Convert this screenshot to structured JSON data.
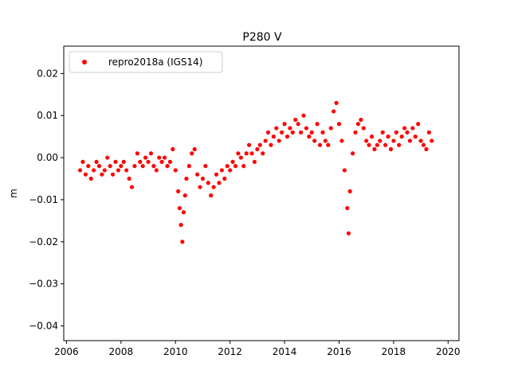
{
  "chart_data": {
    "type": "scatter",
    "title": "P280 V",
    "xlabel": "",
    "ylabel": "m",
    "xlim": [
      2005.9,
      2020.4
    ],
    "ylim": [
      -0.0435,
      0.0265
    ],
    "xticks": [
      2006,
      2008,
      2010,
      2012,
      2014,
      2016,
      2018,
      2020
    ],
    "xtick_labels": [
      "2006",
      "2008",
      "2010",
      "2012",
      "2014",
      "2016",
      "2018",
      "2020"
    ],
    "yticks": [
      -0.04,
      -0.03,
      -0.02,
      -0.01,
      0.0,
      0.01,
      0.02
    ],
    "ytick_labels": [
      "−0.04",
      "−0.03",
      "−0.02",
      "−0.01",
      "0.00",
      "0.01",
      "0.02"
    ],
    "grid": false,
    "legend_position": "top-left",
    "series": [
      {
        "name": "repro2018a (IGS14)",
        "color": "#ff0000",
        "marker": "dot",
        "x": [
          2006.5,
          2006.6,
          2006.7,
          2006.8,
          2006.9,
          2007.0,
          2007.1,
          2007.2,
          2007.3,
          2007.4,
          2007.5,
          2007.6,
          2007.7,
          2007.8,
          2007.9,
          2008.0,
          2008.1,
          2008.2,
          2008.3,
          2008.4,
          2008.5,
          2008.6,
          2008.7,
          2008.8,
          2008.9,
          2009.0,
          2009.1,
          2009.2,
          2009.3,
          2009.4,
          2009.5,
          2009.6,
          2009.7,
          2009.8,
          2009.9,
          2010.0,
          2010.1,
          2010.15,
          2010.2,
          2010.25,
          2010.3,
          2010.35,
          2010.4,
          2010.5,
          2010.6,
          2010.7,
          2010.8,
          2010.9,
          2011.0,
          2011.1,
          2011.2,
          2011.3,
          2011.4,
          2011.5,
          2011.6,
          2011.7,
          2011.8,
          2011.9,
          2012.0,
          2012.1,
          2012.2,
          2012.3,
          2012.4,
          2012.5,
          2012.6,
          2012.7,
          2012.8,
          2012.9,
          2013.0,
          2013.1,
          2013.2,
          2013.3,
          2013.4,
          2013.5,
          2013.6,
          2013.7,
          2013.8,
          2013.9,
          2014.0,
          2014.1,
          2014.2,
          2014.3,
          2014.4,
          2014.5,
          2014.6,
          2014.7,
          2014.8,
          2014.9,
          2015.0,
          2015.1,
          2015.2,
          2015.3,
          2015.4,
          2015.5,
          2015.6,
          2015.7,
          2015.8,
          2015.9,
          2016.0,
          2016.1,
          2016.2,
          2016.3,
          2016.35,
          2016.4,
          2016.5,
          2016.6,
          2016.7,
          2016.8,
          2016.9,
          2017.0,
          2017.1,
          2017.2,
          2017.3,
          2017.4,
          2017.5,
          2017.6,
          2017.7,
          2017.8,
          2017.9,
          2018.0,
          2018.1,
          2018.2,
          2018.3,
          2018.4,
          2018.5,
          2018.6,
          2018.7,
          2018.8,
          2018.9,
          2019.0,
          2019.1,
          2019.2,
          2019.3,
          2019.4
        ],
        "y": [
          -0.003,
          -0.001,
          -0.004,
          -0.002,
          -0.005,
          -0.003,
          -0.001,
          -0.002,
          -0.004,
          -0.003,
          0.0,
          -0.002,
          -0.004,
          -0.001,
          -0.003,
          -0.002,
          -0.001,
          -0.003,
          -0.005,
          -0.007,
          -0.002,
          0.001,
          -0.001,
          -0.002,
          0.0,
          -0.001,
          0.001,
          -0.002,
          -0.003,
          0.0,
          -0.001,
          0.0,
          -0.002,
          -0.001,
          0.002,
          -0.003,
          -0.008,
          -0.012,
          -0.016,
          -0.02,
          -0.013,
          -0.009,
          -0.005,
          -0.002,
          0.001,
          0.002,
          -0.004,
          -0.007,
          -0.005,
          -0.002,
          -0.006,
          -0.009,
          -0.007,
          -0.004,
          -0.006,
          -0.003,
          -0.005,
          -0.002,
          -0.003,
          -0.001,
          -0.002,
          0.001,
          0.0,
          -0.002,
          0.001,
          0.003,
          0.001,
          -0.001,
          0.002,
          0.003,
          0.001,
          0.004,
          0.006,
          0.003,
          0.005,
          0.007,
          0.004,
          0.006,
          0.008,
          0.005,
          0.007,
          0.006,
          0.009,
          0.008,
          0.006,
          0.01,
          0.007,
          0.005,
          0.006,
          0.004,
          0.008,
          0.003,
          0.006,
          0.004,
          0.003,
          0.007,
          0.011,
          0.013,
          0.008,
          0.004,
          -0.003,
          -0.012,
          -0.018,
          -0.008,
          0.001,
          0.006,
          0.008,
          0.009,
          0.007,
          0.004,
          0.003,
          0.005,
          0.002,
          0.003,
          0.004,
          0.006,
          0.003,
          0.005,
          0.002,
          0.004,
          0.006,
          0.003,
          0.005,
          0.007,
          0.006,
          0.004,
          0.007,
          0.005,
          0.008,
          0.004,
          0.003,
          0.002,
          0.006,
          0.004
        ]
      }
    ]
  }
}
